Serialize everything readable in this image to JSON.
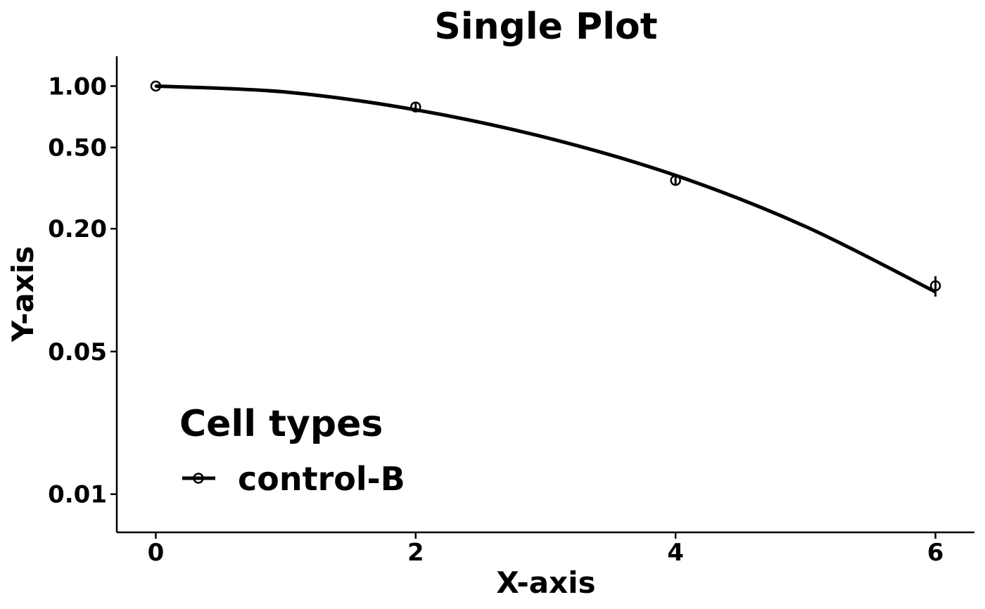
{
  "chart_data": {
    "type": "line",
    "title": "Single Plot",
    "xlabel": "X-axis",
    "ylabel": "Y-axis",
    "x_ticks": [
      "0",
      "2",
      "4",
      "6"
    ],
    "y_ticks": [
      "1.00",
      "0.50",
      "0.20",
      "0.05",
      "0.01"
    ],
    "y_scale": "log",
    "xlim": [
      -0.3,
      6.3
    ],
    "ylim": [
      0.0065,
      1.4
    ],
    "grid": false,
    "legend": {
      "title": "Cell types",
      "placement": "bottom-left",
      "entries": [
        "control-B"
      ]
    },
    "series": [
      {
        "name": "control-B",
        "color": "#000000",
        "points": [
          {
            "x": 0,
            "y": 1.0,
            "err": 0.015
          },
          {
            "x": 2,
            "y": 0.79,
            "err": 0.04
          },
          {
            "x": 4,
            "y": 0.345,
            "err": 0.02
          },
          {
            "x": 6,
            "y": 0.105,
            "err": 0.012
          }
        ],
        "fit": [
          {
            "x": 0,
            "y": 1.0
          },
          {
            "x": 1,
            "y": 0.935
          },
          {
            "x": 2,
            "y": 0.765
          },
          {
            "x": 3,
            "y": 0.56
          },
          {
            "x": 4,
            "y": 0.365
          },
          {
            "x": 5,
            "y": 0.205
          },
          {
            "x": 6,
            "y": 0.098
          }
        ]
      }
    ]
  }
}
